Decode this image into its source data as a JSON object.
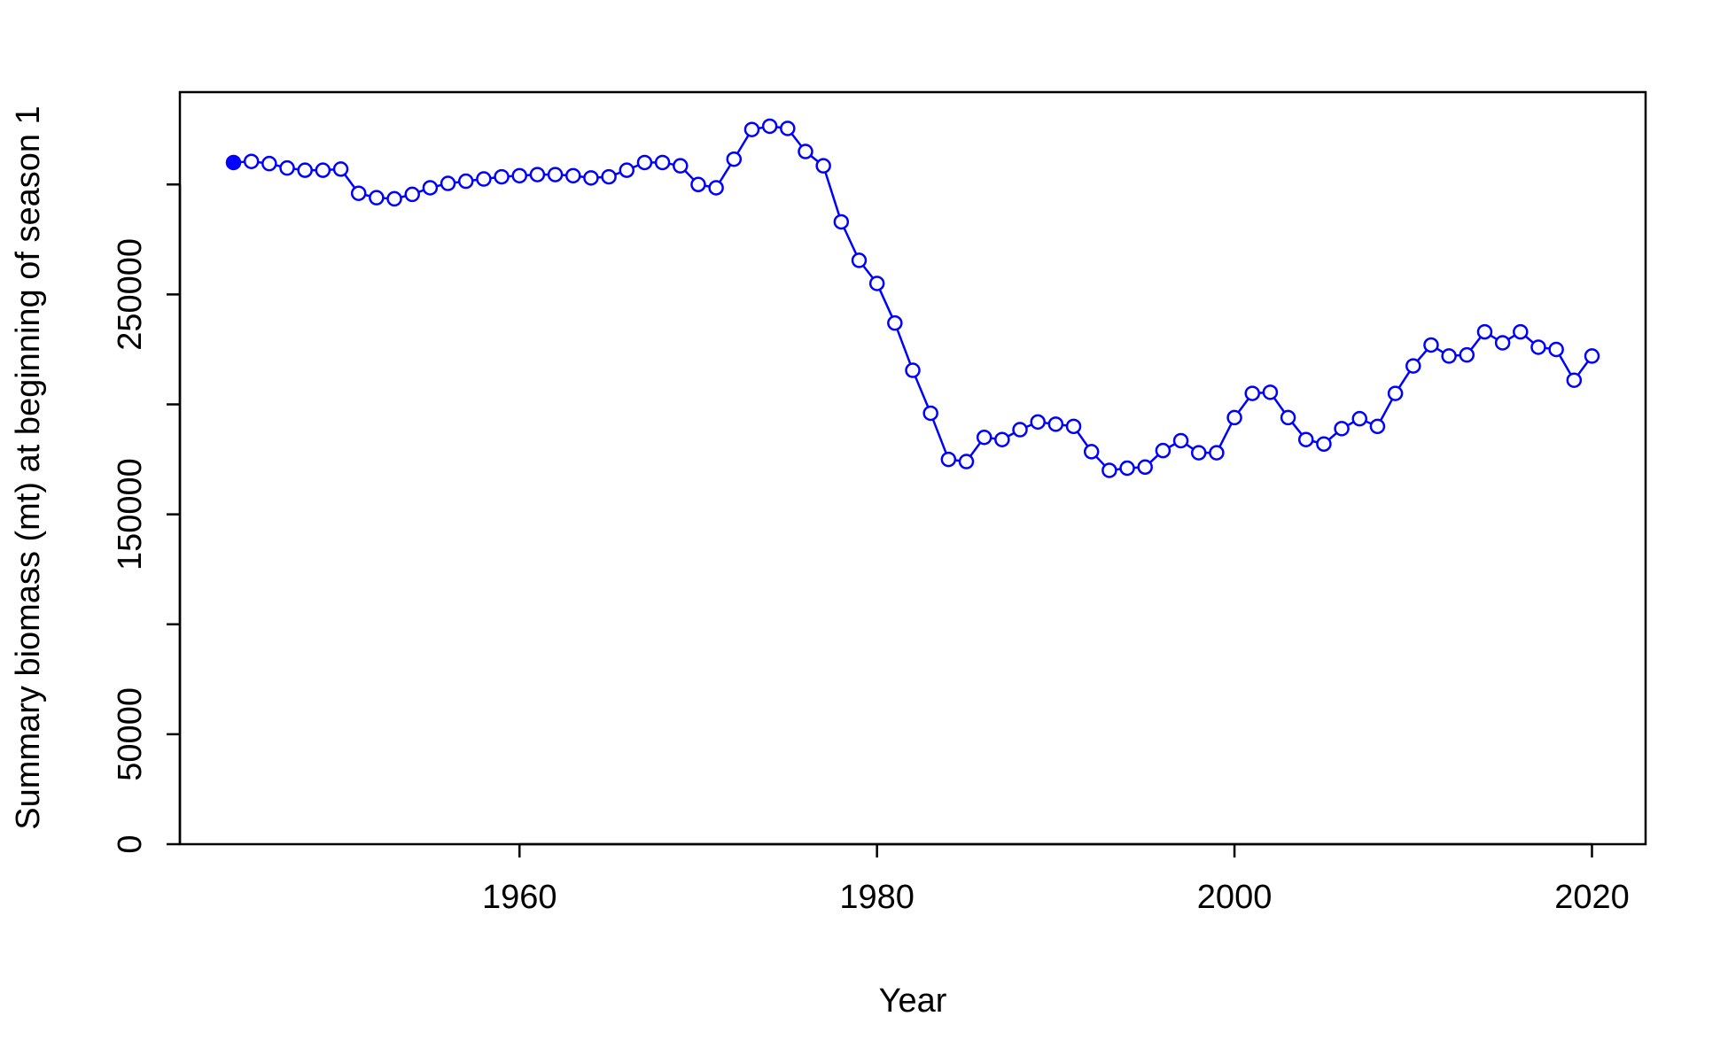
{
  "chart_data": {
    "type": "line",
    "title": "",
    "xlabel": "Year",
    "ylabel": "Summary biomass (mt) at beginning of season 1",
    "xlim": [
      1941,
      2023
    ],
    "ylim": [
      0,
      342000
    ],
    "x_ticks": [
      1960,
      1980,
      2000,
      2020
    ],
    "x_tick_labels": [
      "1960",
      "1980",
      "2000",
      "2020"
    ],
    "y_ticks": [
      0,
      50000,
      100000,
      150000,
      200000,
      250000,
      300000
    ],
    "y_tick_labels": [
      "0",
      "50000",
      "",
      "150000",
      "",
      "250000",
      ""
    ],
    "grid": false,
    "legend": "none",
    "line_color": "#0000ff",
    "series": [
      {
        "x": [
          1944,
          1945,
          1946,
          1947,
          1948,
          1949,
          1950,
          1951,
          1952,
          1953,
          1954,
          1955,
          1956,
          1957,
          1958,
          1959,
          1960,
          1961,
          1962,
          1963,
          1964,
          1965,
          1966,
          1967,
          1968,
          1969,
          1970,
          1971,
          1972,
          1973,
          1974,
          1975,
          1976,
          1977,
          1978,
          1979,
          1980,
          1981,
          1982,
          1983,
          1984,
          1985,
          1986,
          1987,
          1988,
          1989,
          1990,
          1991,
          1992,
          1993,
          1994,
          1995,
          1996,
          1997,
          1998,
          1999,
          2000,
          2001,
          2002,
          2003,
          2004,
          2005,
          2006,
          2007,
          2008,
          2009,
          2010,
          2011,
          2012,
          2013,
          2014,
          2015,
          2016,
          2017,
          2018,
          2019,
          2020
        ],
        "values": [
          310000,
          310500,
          309500,
          307500,
          306500,
          306500,
          307000,
          296000,
          294000,
          293500,
          295500,
          298500,
          300500,
          301500,
          302500,
          303500,
          304000,
          304500,
          304500,
          304000,
          303000,
          303500,
          306500,
          310000,
          310000,
          308500,
          300000,
          298500,
          311500,
          325000,
          326500,
          325500,
          315000,
          308500,
          283000,
          265500,
          255000,
          237000,
          215500,
          196000,
          175000,
          174000,
          185000,
          184000,
          188500,
          192000,
          191000,
          190000,
          178500,
          170000,
          171000,
          171500,
          179000,
          183500,
          178000,
          178000,
          194000,
          205000,
          205500,
          194000,
          184000,
          182000,
          189000,
          193500,
          190000,
          205000,
          217500,
          227000,
          222000,
          222500,
          233000,
          228000,
          233000,
          226000,
          225000,
          211000,
          222000
        ],
        "first_point_filled": true
      }
    ]
  }
}
